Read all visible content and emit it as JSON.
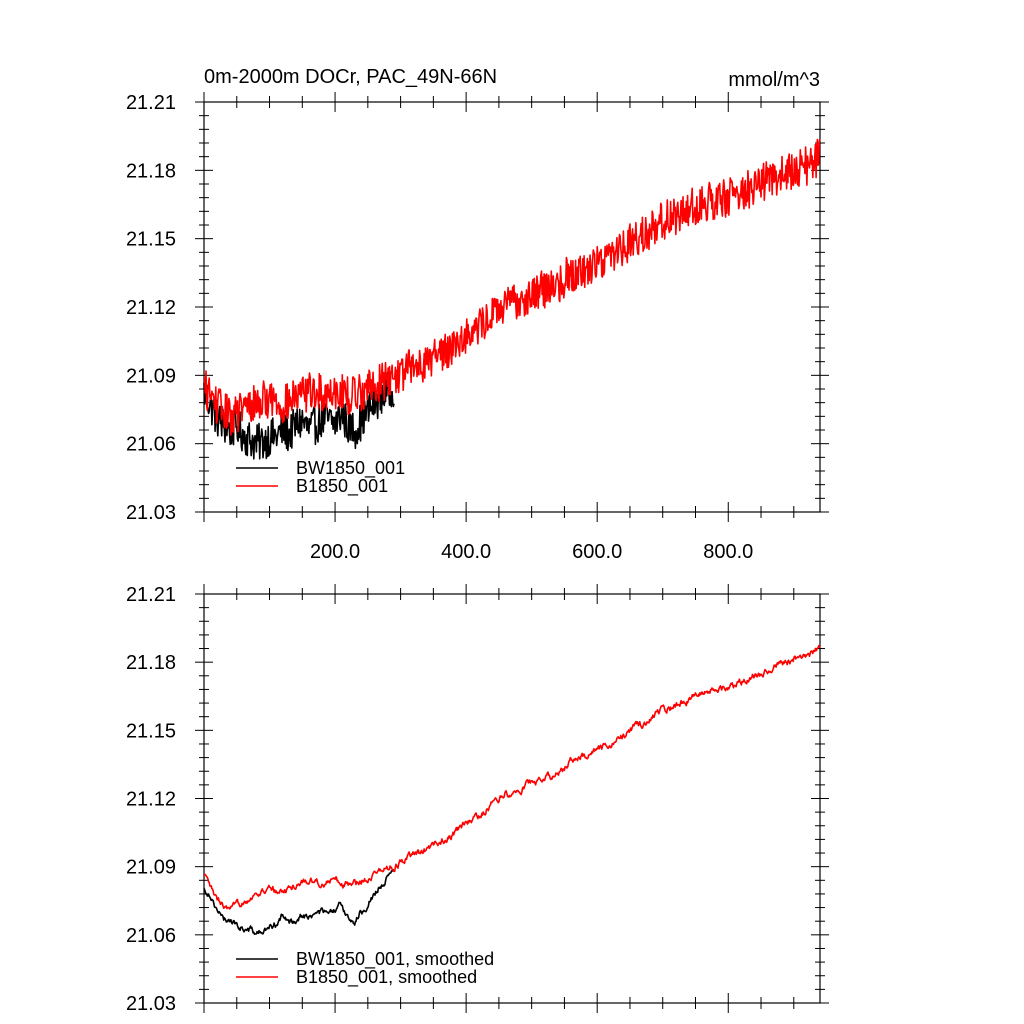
{
  "chart_data": [
    {
      "type": "line",
      "title": "0m-2000m DOCr, PAC_49N-66N",
      "units": "mmol/m^3",
      "xlabel": "",
      "ylabel": "",
      "xlim": [
        0,
        940
      ],
      "ylim": [
        21.03,
        21.21
      ],
      "x_ticks": [
        200,
        400,
        600,
        800
      ],
      "x_tick_labels": [
        "200.0",
        "400.0",
        "600.0",
        "800.0"
      ],
      "y_ticks": [
        21.03,
        21.06,
        21.09,
        21.12,
        21.15,
        21.18,
        21.21
      ],
      "y_tick_labels": [
        "21.03",
        "21.06",
        "21.09",
        "21.12",
        "21.15",
        "21.18",
        "21.21"
      ],
      "legend_position": "bottom-left",
      "grid": false,
      "series": [
        {
          "name": "BW1850_001",
          "color": "#000000",
          "x": [
            0,
            10,
            20,
            30,
            40,
            50,
            60,
            70,
            80,
            90,
            100,
            110,
            120,
            130,
            140,
            150,
            160,
            170,
            180,
            190,
            200,
            210,
            220,
            230,
            240,
            250,
            260,
            270,
            280,
            290
          ],
          "y": [
            21.083,
            21.077,
            21.071,
            21.068,
            21.066,
            21.068,
            21.064,
            21.062,
            21.06,
            21.061,
            21.063,
            21.063,
            21.066,
            21.064,
            21.068,
            21.07,
            21.066,
            21.068,
            21.071,
            21.07,
            21.069,
            21.073,
            21.068,
            21.066,
            21.07,
            21.074,
            21.078,
            21.081,
            21.083,
            21.085
          ]
        },
        {
          "name": "B1850_001",
          "color": "#ff0000",
          "x": [
            0,
            20,
            40,
            60,
            80,
            100,
            120,
            140,
            160,
            180,
            200,
            220,
            240,
            260,
            280,
            300,
            320,
            340,
            360,
            380,
            400,
            420,
            440,
            460,
            480,
            500,
            520,
            540,
            560,
            580,
            600,
            620,
            640,
            660,
            680,
            700,
            720,
            740,
            760,
            780,
            800,
            820,
            840,
            860,
            880,
            900,
            920,
            940
          ],
          "y": [
            21.085,
            21.077,
            21.072,
            21.075,
            21.078,
            21.08,
            21.077,
            21.08,
            21.083,
            21.082,
            21.084,
            21.081,
            21.083,
            21.086,
            21.088,
            21.091,
            21.094,
            21.096,
            21.1,
            21.103,
            21.108,
            21.111,
            21.117,
            21.12,
            21.123,
            21.126,
            21.128,
            21.13,
            21.135,
            21.136,
            21.14,
            21.143,
            21.147,
            21.15,
            21.154,
            21.158,
            21.16,
            21.163,
            21.166,
            21.167,
            21.168,
            21.17,
            21.173,
            21.176,
            21.178,
            21.18,
            21.182,
            21.186
          ]
        }
      ]
    },
    {
      "type": "line",
      "title": "",
      "units": "",
      "xlabel": "",
      "ylabel": "",
      "xlim": [
        0,
        940
      ],
      "ylim": [
        21.03,
        21.21
      ],
      "y_ticks": [
        21.03,
        21.06,
        21.09,
        21.12,
        21.15,
        21.18,
        21.21
      ],
      "y_tick_labels": [
        "21.03",
        "21.06",
        "21.09",
        "21.12",
        "21.15",
        "21.18",
        "21.21"
      ],
      "legend_position": "bottom-left",
      "grid": false,
      "series": [
        {
          "name": "BW1850_001, smoothed",
          "color": "#000000",
          "x": [
            0,
            10,
            20,
            30,
            40,
            50,
            60,
            70,
            80,
            90,
            100,
            110,
            120,
            130,
            140,
            150,
            160,
            170,
            180,
            190,
            200,
            210,
            220,
            230,
            240,
            250,
            260,
            270,
            280,
            290
          ],
          "y": [
            21.08,
            21.078,
            21.071,
            21.066,
            21.067,
            21.064,
            21.063,
            21.062,
            21.061,
            21.061,
            21.063,
            21.065,
            21.068,
            21.065,
            21.067,
            21.069,
            21.068,
            21.069,
            21.07,
            21.069,
            21.07,
            21.073,
            21.068,
            21.066,
            21.07,
            21.074,
            21.078,
            21.082,
            21.085,
            21.087
          ]
        },
        {
          "name": "B1850_001, smoothed",
          "color": "#ff0000",
          "x": [
            0,
            20,
            40,
            60,
            80,
            100,
            120,
            140,
            160,
            180,
            200,
            220,
            240,
            260,
            280,
            300,
            320,
            340,
            360,
            380,
            400,
            420,
            440,
            460,
            480,
            500,
            520,
            540,
            560,
            580,
            600,
            620,
            640,
            660,
            680,
            700,
            720,
            740,
            760,
            780,
            800,
            820,
            840,
            860,
            880,
            900,
            920,
            940
          ],
          "y": [
            21.086,
            21.075,
            21.07,
            21.075,
            21.078,
            21.08,
            21.079,
            21.082,
            21.084,
            21.083,
            21.084,
            21.082,
            21.084,
            21.087,
            21.089,
            21.092,
            21.095,
            21.097,
            21.101,
            21.104,
            21.109,
            21.112,
            21.118,
            21.122,
            21.124,
            21.127,
            21.129,
            21.131,
            21.137,
            21.138,
            21.141,
            21.144,
            21.148,
            21.151,
            21.155,
            21.159,
            21.161,
            21.164,
            21.167,
            21.168,
            21.169,
            21.171,
            21.174,
            21.177,
            21.179,
            21.181,
            21.183,
            21.186
          ]
        }
      ]
    }
  ]
}
